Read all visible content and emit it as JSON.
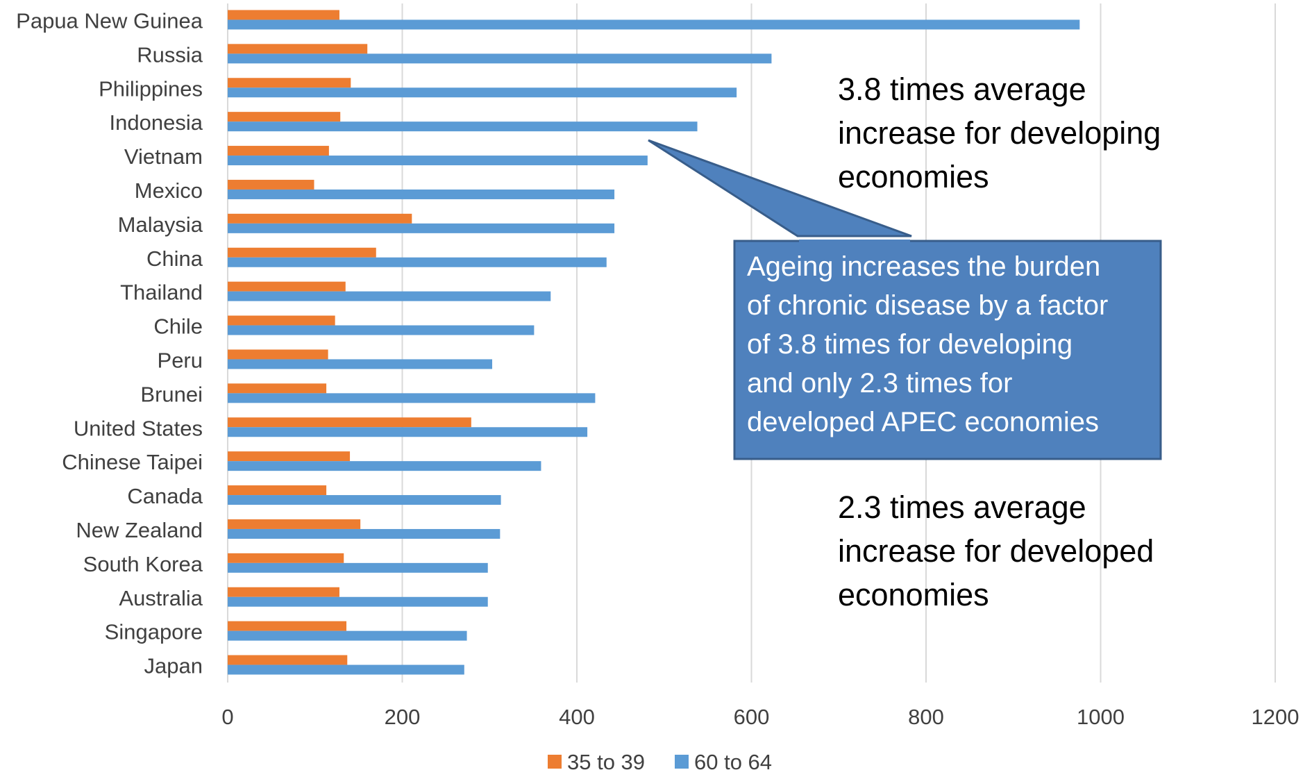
{
  "chart_data": {
    "type": "bar",
    "orientation": "horizontal",
    "categories": [
      "Japan",
      "Singapore",
      "Australia",
      "South Korea",
      "New Zealand",
      "Canada",
      "Chinese Taipei",
      "United States",
      "Brunei",
      "Peru",
      "Chile",
      "Thailand",
      "China",
      "Malaysia",
      "Mexico",
      "Vietnam",
      "Indonesia",
      "Philippines",
      "Russia",
      "Papua New Guinea"
    ],
    "series": [
      {
        "name": "35 to 39",
        "color": "#ED7D31",
        "values": [
          137,
          136,
          128,
          133,
          152,
          113,
          140,
          279,
          113,
          115,
          123,
          135,
          170,
          211,
          99,
          116,
          129,
          141,
          160,
          128
        ]
      },
      {
        "name": "60 to 64",
        "color": "#5B9BD5",
        "values": [
          271,
          274,
          298,
          298,
          312,
          313,
          359,
          412,
          421,
          303,
          351,
          370,
          434,
          443,
          443,
          481,
          538,
          583,
          623,
          976
        ]
      }
    ],
    "xlim": [
      0,
      1200
    ],
    "xticks": [
      0,
      200,
      400,
      600,
      800,
      1000,
      1200
    ],
    "grid": true,
    "legend_position": "bottom"
  },
  "annotations": {
    "developing_note": "3.8 times average\nincrease for developing\neconomies",
    "developed_note": "2.3 times average\nincrease for developed\neconomies",
    "callout": "Ageing increases the burden\nof chronic disease by a factor\nof 3.8 times for developing\nand only 2.3 times for\ndeveloped APEC economies",
    "callout_fill": "#4F81BD",
    "callout_border": "#385D8A"
  }
}
